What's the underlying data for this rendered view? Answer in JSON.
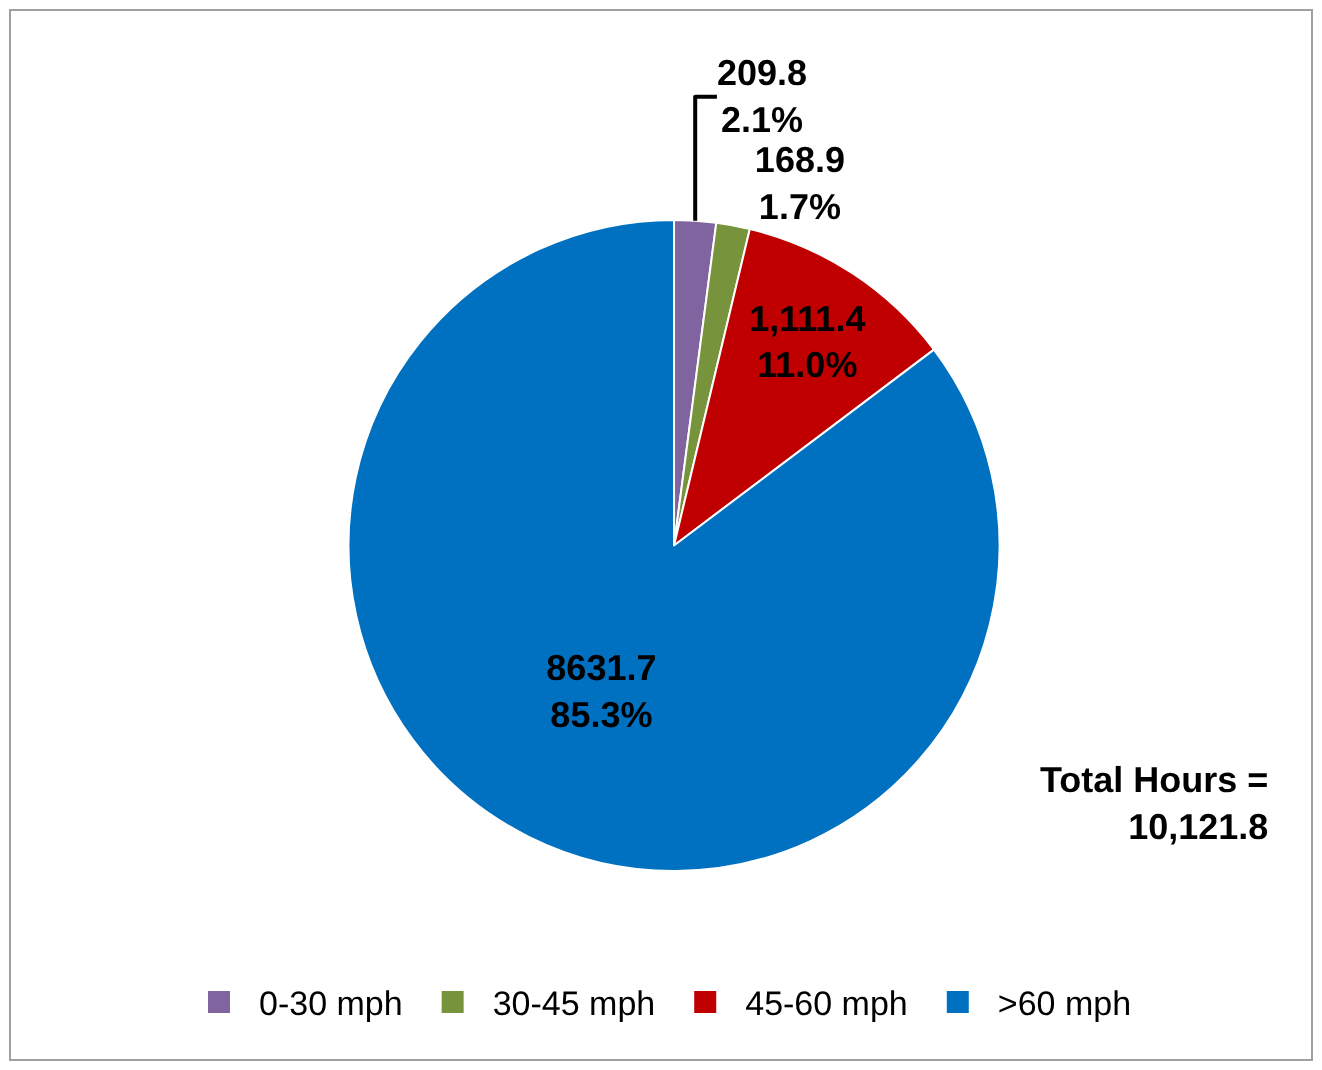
{
  "chart_data": {
    "type": "pie",
    "categories": [
      "0-30 mph",
      "30-45 mph",
      "45-60 mph",
      ">60 mph"
    ],
    "values": [
      209.8,
      168.9,
      1111.4,
      8631.7
    ],
    "colors": [
      "#7f64a0",
      "#77933c",
      "#c00000",
      "#0070c0"
    ],
    "value_labels": [
      "209.8\n2.1%",
      "168.9\n1.7%",
      "1,111.4\n11.0%",
      "8631.7\n85.3%"
    ],
    "annotations": [
      "Total Hours =\n10,121.8"
    ],
    "legend": "bottom"
  }
}
